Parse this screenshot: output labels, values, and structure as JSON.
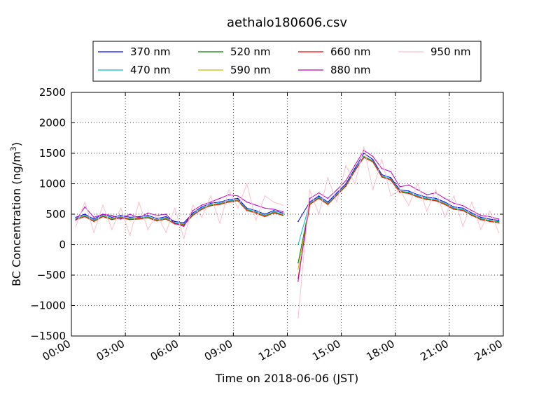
{
  "chart_data": {
    "type": "line",
    "title": "aethalo180606.csv",
    "xlabel": "Time on 2018-06-06 (JST)",
    "ylabel": "BC Concentration (ng/m",
    "ylabel_superscript": "3",
    "ylabel_suffix": ")",
    "xlim": [
      0,
      24
    ],
    "ylim": [
      -1500,
      2500
    ],
    "x_ticks": [
      0,
      3,
      6,
      9,
      12,
      15,
      18,
      21,
      24
    ],
    "x_tick_labels": [
      "00:00",
      "03:00",
      "06:00",
      "09:00",
      "12:00",
      "15:00",
      "18:00",
      "21:00",
      "24:00"
    ],
    "y_ticks": [
      -1500,
      -1000,
      -500,
      0,
      500,
      1000,
      1500,
      2000,
      2500
    ],
    "y_tick_labels": [
      "−1500",
      "−1000",
      "−500",
      "0",
      "500",
      "1000",
      "1500",
      "2000",
      "2500"
    ],
    "grid": true,
    "legend_position": "top-center",
    "gap": {
      "start": 12.0,
      "end": 12.6,
      "note": "data interruption"
    },
    "x": [
      0.25,
      0.75,
      1.25,
      1.75,
      2.25,
      2.75,
      3.25,
      3.75,
      4.25,
      4.75,
      5.25,
      5.75,
      6.25,
      6.75,
      7.25,
      7.75,
      8.25,
      8.75,
      9.25,
      9.75,
      10.25,
      10.75,
      11.25,
      11.75,
      12.6,
      13.25,
      13.75,
      14.25,
      14.75,
      15.25,
      15.75,
      16.25,
      16.75,
      17.25,
      17.75,
      18.25,
      18.75,
      19.25,
      19.75,
      20.25,
      20.75,
      21.25,
      21.75,
      22.25,
      22.75,
      23.25,
      23.75
    ],
    "series": [
      {
        "name": "370 nm",
        "color": "#0000ff",
        "values": [
          450,
          500,
          420,
          500,
          450,
          480,
          450,
          460,
          480,
          430,
          460,
          380,
          360,
          520,
          620,
          680,
          700,
          740,
          760,
          600,
          560,
          500,
          560,
          520,
          380,
          700,
          800,
          700,
          850,
          1000,
          1250,
          1500,
          1400,
          1150,
          1100,
          900,
          880,
          820,
          780,
          760,
          700,
          620,
          600,
          520,
          450,
          420,
          400
        ]
      },
      {
        "name": "470 nm",
        "color": "#00bfbf",
        "values": [
          430,
          480,
          400,
          480,
          430,
          460,
          430,
          440,
          460,
          410,
          440,
          360,
          340,
          500,
          600,
          660,
          680,
          720,
          740,
          580,
          540,
          480,
          540,
          500,
          0,
          680,
          780,
          680,
          830,
          980,
          1230,
          1450,
          1380,
          1130,
          1080,
          880,
          860,
          800,
          760,
          740,
          680,
          600,
          580,
          500,
          430,
          400,
          380
        ]
      },
      {
        "name": "520 nm",
        "color": "#008000",
        "values": [
          420,
          470,
          390,
          470,
          420,
          450,
          420,
          430,
          450,
          400,
          430,
          350,
          330,
          490,
          590,
          650,
          670,
          710,
          730,
          570,
          530,
          470,
          530,
          490,
          -300,
          670,
          770,
          670,
          820,
          970,
          1220,
          1440,
          1370,
          1120,
          1070,
          870,
          850,
          790,
          750,
          730,
          670,
          590,
          570,
          490,
          420,
          390,
          370
        ]
      },
      {
        "name": "590 nm",
        "color": "#bfbf00",
        "values": [
          415,
          465,
          385,
          465,
          415,
          445,
          415,
          425,
          445,
          395,
          425,
          345,
          325,
          485,
          585,
          645,
          665,
          705,
          725,
          565,
          525,
          465,
          525,
          485,
          -400,
          665,
          765,
          665,
          815,
          965,
          1215,
          1435,
          1365,
          1115,
          1065,
          865,
          845,
          785,
          745,
          725,
          665,
          585,
          565,
          485,
          415,
          385,
          365
        ]
      },
      {
        "name": "660 nm",
        "color": "#ff0000",
        "values": [
          410,
          460,
          380,
          460,
          410,
          440,
          410,
          420,
          440,
          390,
          420,
          340,
          320,
          480,
          580,
          640,
          660,
          700,
          720,
          560,
          520,
          460,
          520,
          480,
          -550,
          660,
          760,
          660,
          810,
          960,
          1210,
          1430,
          1360,
          1110,
          1060,
          860,
          840,
          780,
          740,
          720,
          660,
          580,
          560,
          480,
          410,
          380,
          360
        ]
      },
      {
        "name": "880 nm",
        "color": "#bf00bf",
        "values": [
          400,
          620,
          450,
          500,
          480,
          420,
          500,
          440,
          520,
          480,
          500,
          350,
          300,
          560,
          650,
          700,
          760,
          820,
          800,
          700,
          650,
          600,
          580,
          540,
          -600,
          760,
          850,
          760,
          900,
          1050,
          1300,
          1550,
          1450,
          1250,
          1200,
          950,
          980,
          900,
          820,
          850,
          760,
          680,
          640,
          560,
          480,
          460,
          420
        ]
      },
      {
        "name": "950 nm",
        "color": "#ffc0cb",
        "values": [
          300,
          700,
          200,
          650,
          250,
          600,
          150,
          700,
          250,
          500,
          200,
          600,
          100,
          650,
          450,
          800,
          350,
          900,
          600,
          1000,
          400,
          800,
          700,
          650,
          -1200,
          900,
          500,
          1100,
          700,
          1300,
          1000,
          1600,
          900,
          1400,
          800,
          900,
          650,
          1000,
          550,
          900,
          450,
          800,
          300,
          700,
          250,
          550,
          200
        ]
      }
    ]
  }
}
